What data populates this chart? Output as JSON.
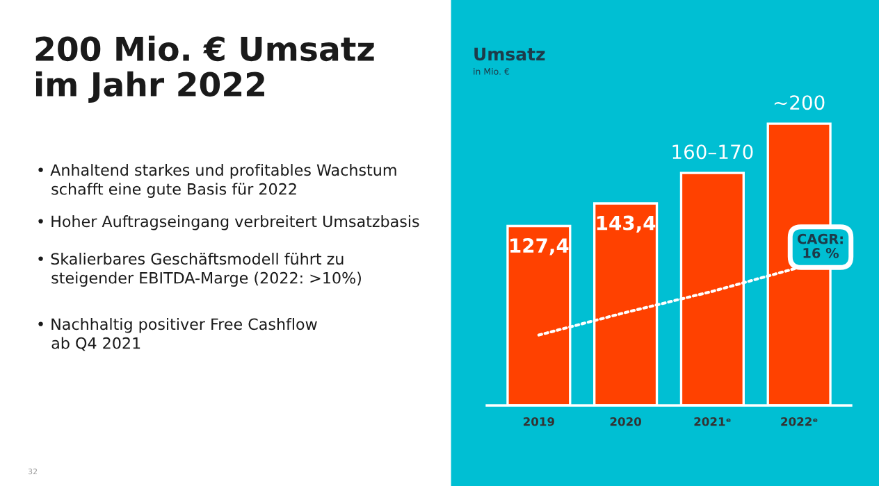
{
  "chart_data": {
    "type": "bar",
    "title": "Umsatz",
    "subtitle": "in Mio. €",
    "categories": [
      "2019",
      "2020",
      "2021ᵉ",
      "2022ᵉ"
    ],
    "series": [
      {
        "color": "#ff4100",
        "values": [
          127.4,
          143.4,
          165,
          200
        ],
        "value_labels": [
          "127,4",
          "143,4",
          "160–170",
          "~200"
        ]
      },
      {
        "type": "line",
        "color": "#ffffff",
        "values": [
          50,
          66,
          81,
          98
        ],
        "line_style": "dotted"
      }
    ],
    "grid": false,
    "legend": false,
    "tick_labels": "x",
    "annotations": [
      "200 Mio. € Umsatz\nim Jahr 2022",
      "• Anhaltend starkes und profitables Wachstum\n   schafft eine gute Basis für 2022",
      "• Hoher Auftragseingang verbreitert Umsatzbasis",
      "• Skalierbares Geschäftsmodell führt zu\n   steigender EBITDA-Marge (2022: >10%)",
      "• Nachhaltig positiver Free Cashflow\n   ab Q4 2021",
      "32",
      "CAGR:\n16 %"
    ]
  }
}
